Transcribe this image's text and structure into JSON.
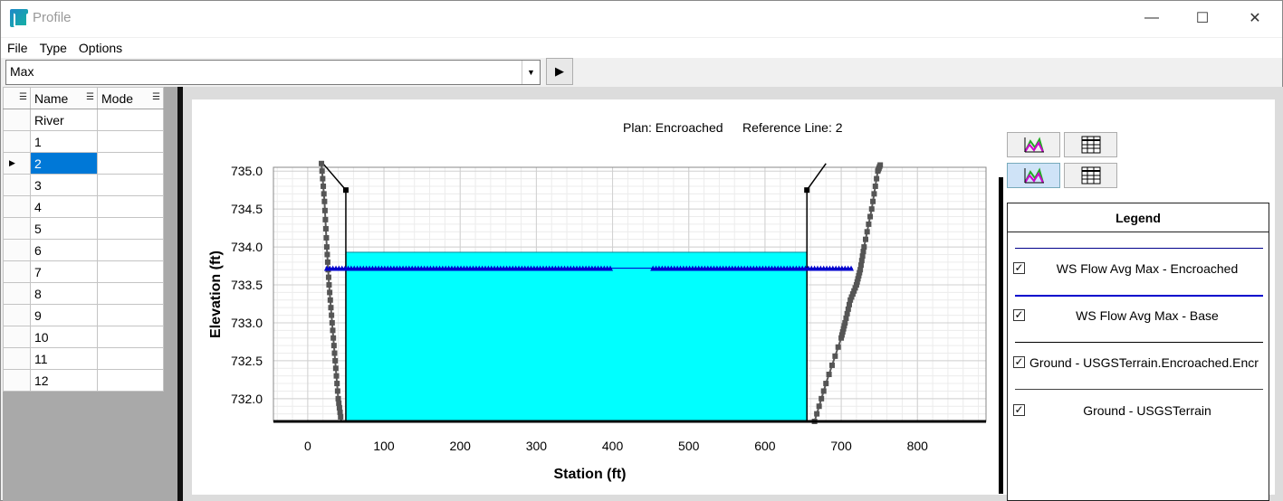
{
  "window": {
    "title": "Profile",
    "minimize": "—",
    "maximize": "☐",
    "close": "✕"
  },
  "menu": {
    "file": "File",
    "type": "Type",
    "options": "Options"
  },
  "toolbar": {
    "profile_select": "Max",
    "dropdown_arrow": "▼",
    "play": "▶"
  },
  "grid": {
    "headers": {
      "name": "Name",
      "mode": "Mode"
    },
    "selected_row": "2",
    "rows": [
      "River",
      "1",
      "2",
      "3",
      "4",
      "5",
      "6",
      "7",
      "8",
      "9",
      "10",
      "11",
      "12"
    ]
  },
  "chart_header": {
    "plan": "Plan: Encroached",
    "reference": "Reference Line: 2"
  },
  "legend": {
    "title": "Legend",
    "entries": [
      {
        "label": "WS Flow Avg Max - Encroached",
        "checked": true,
        "color": "#00008b"
      },
      {
        "label": "WS Flow Avg Max - Base",
        "checked": true,
        "color": "#0000cd"
      },
      {
        "label": "Ground - USGSTerrain.Encroached.Encr",
        "checked": true,
        "color": "#000000"
      },
      {
        "label": "Ground - USGSTerrain",
        "checked": true,
        "color": "#444444"
      }
    ]
  },
  "chart_data": {
    "type": "line",
    "xlabel": "Station (ft)",
    "ylabel": "Elevation (ft)",
    "xlim": [
      -45,
      890
    ],
    "ylim": [
      731.7,
      735.05
    ],
    "xticks": [
      0,
      100,
      200,
      300,
      400,
      500,
      600,
      700,
      800
    ],
    "xtick_labels": [
      "0",
      "100",
      "200",
      "300",
      "400",
      "500",
      "600",
      "700",
      "800"
    ],
    "yticks": [
      732.0,
      732.5,
      733.0,
      733.5,
      734.0,
      734.5,
      735.0
    ],
    "ytick_labels": [
      "732.0",
      "732.5",
      "733.0",
      "733.5",
      "734.0",
      "734.5",
      "735.0"
    ],
    "series": [
      {
        "name": "WS Flow Avg Max - Encroached",
        "color": "#00ffff",
        "x": [
          50,
          655
        ],
        "y": [
          733.93,
          733.93
        ]
      },
      {
        "name": "WS Flow Avg Max - Base",
        "color": "#0000cd",
        "x": [
          25,
          715
        ],
        "y": [
          733.72,
          733.72
        ]
      },
      {
        "name": "Ground - USGSTerrain.Encroached.Encr",
        "color": "#000000",
        "x": [
          20,
          50,
          50,
          655,
          655,
          680
        ],
        "y": [
          735.1,
          734.75,
          731.7,
          731.7,
          734.75,
          735.1
        ]
      },
      {
        "name": "Ground - USGSTerrain",
        "color": "#5a5a5a",
        "x": [
          18,
          22,
          25,
          28,
          32,
          36,
          40,
          44
        ],
        "y": [
          735.1,
          734.6,
          734.0,
          733.5,
          733.0,
          732.5,
          732.0,
          731.7
        ]
      },
      {
        "name": "Ground - USGSTerrain",
        "color": "#5a5a5a",
        "x": [
          665,
          680,
          700,
          705,
          712,
          720,
          725,
          730,
          740,
          748,
          752
        ],
        "y": [
          731.7,
          732.2,
          732.8,
          733.0,
          733.3,
          733.5,
          733.7,
          734.0,
          734.5,
          735.0,
          735.1
        ]
      }
    ]
  }
}
